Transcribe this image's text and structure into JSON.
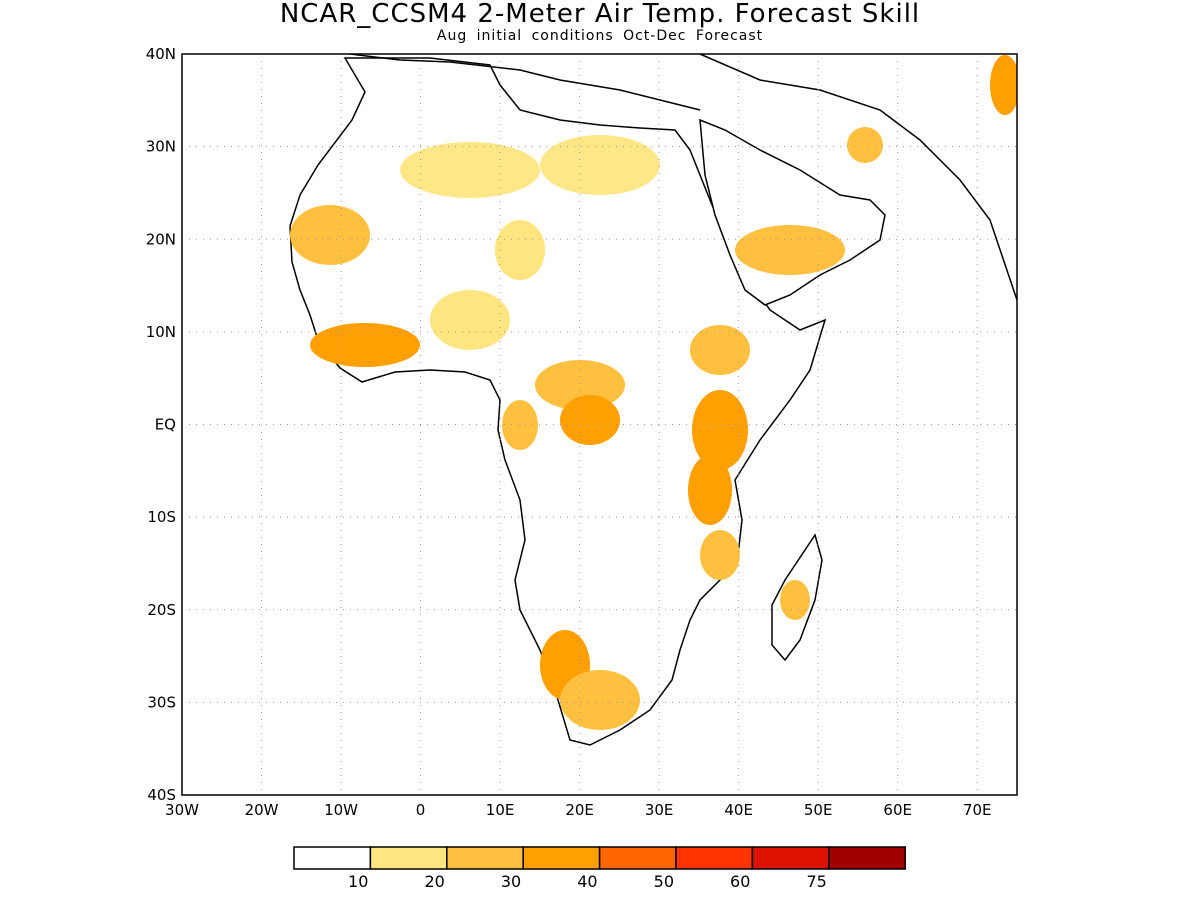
{
  "title": "NCAR_CCSM4 2-Meter Air Temp. Forecast Skill",
  "subtitle": "Aug initial conditions  Oct-Dec Forecast",
  "map": {
    "lon_range": [
      -30,
      75
    ],
    "lat_range": [
      -40,
      40
    ],
    "x_tick_labels": [
      "30W",
      "20W",
      "10W",
      "0",
      "10E",
      "20E",
      "30E",
      "40E",
      "50E",
      "60E",
      "70E"
    ],
    "y_tick_labels": [
      "40N",
      "30N",
      "20N",
      "10N",
      "EQ",
      "10S",
      "20S",
      "30S",
      "40S"
    ],
    "grid": "dotted",
    "ocean_color": "#ffffff",
    "coastline_color": "#000000"
  },
  "legend": {
    "colors": [
      "#ffffff",
      "#ffe57f",
      "#ffbf3f",
      "#ff9f00",
      "#ff6600",
      "#ff3300",
      "#dd1100",
      "#a00000"
    ],
    "labels": [
      "10",
      "20",
      "30",
      "40",
      "50",
      "60",
      "75"
    ]
  }
}
